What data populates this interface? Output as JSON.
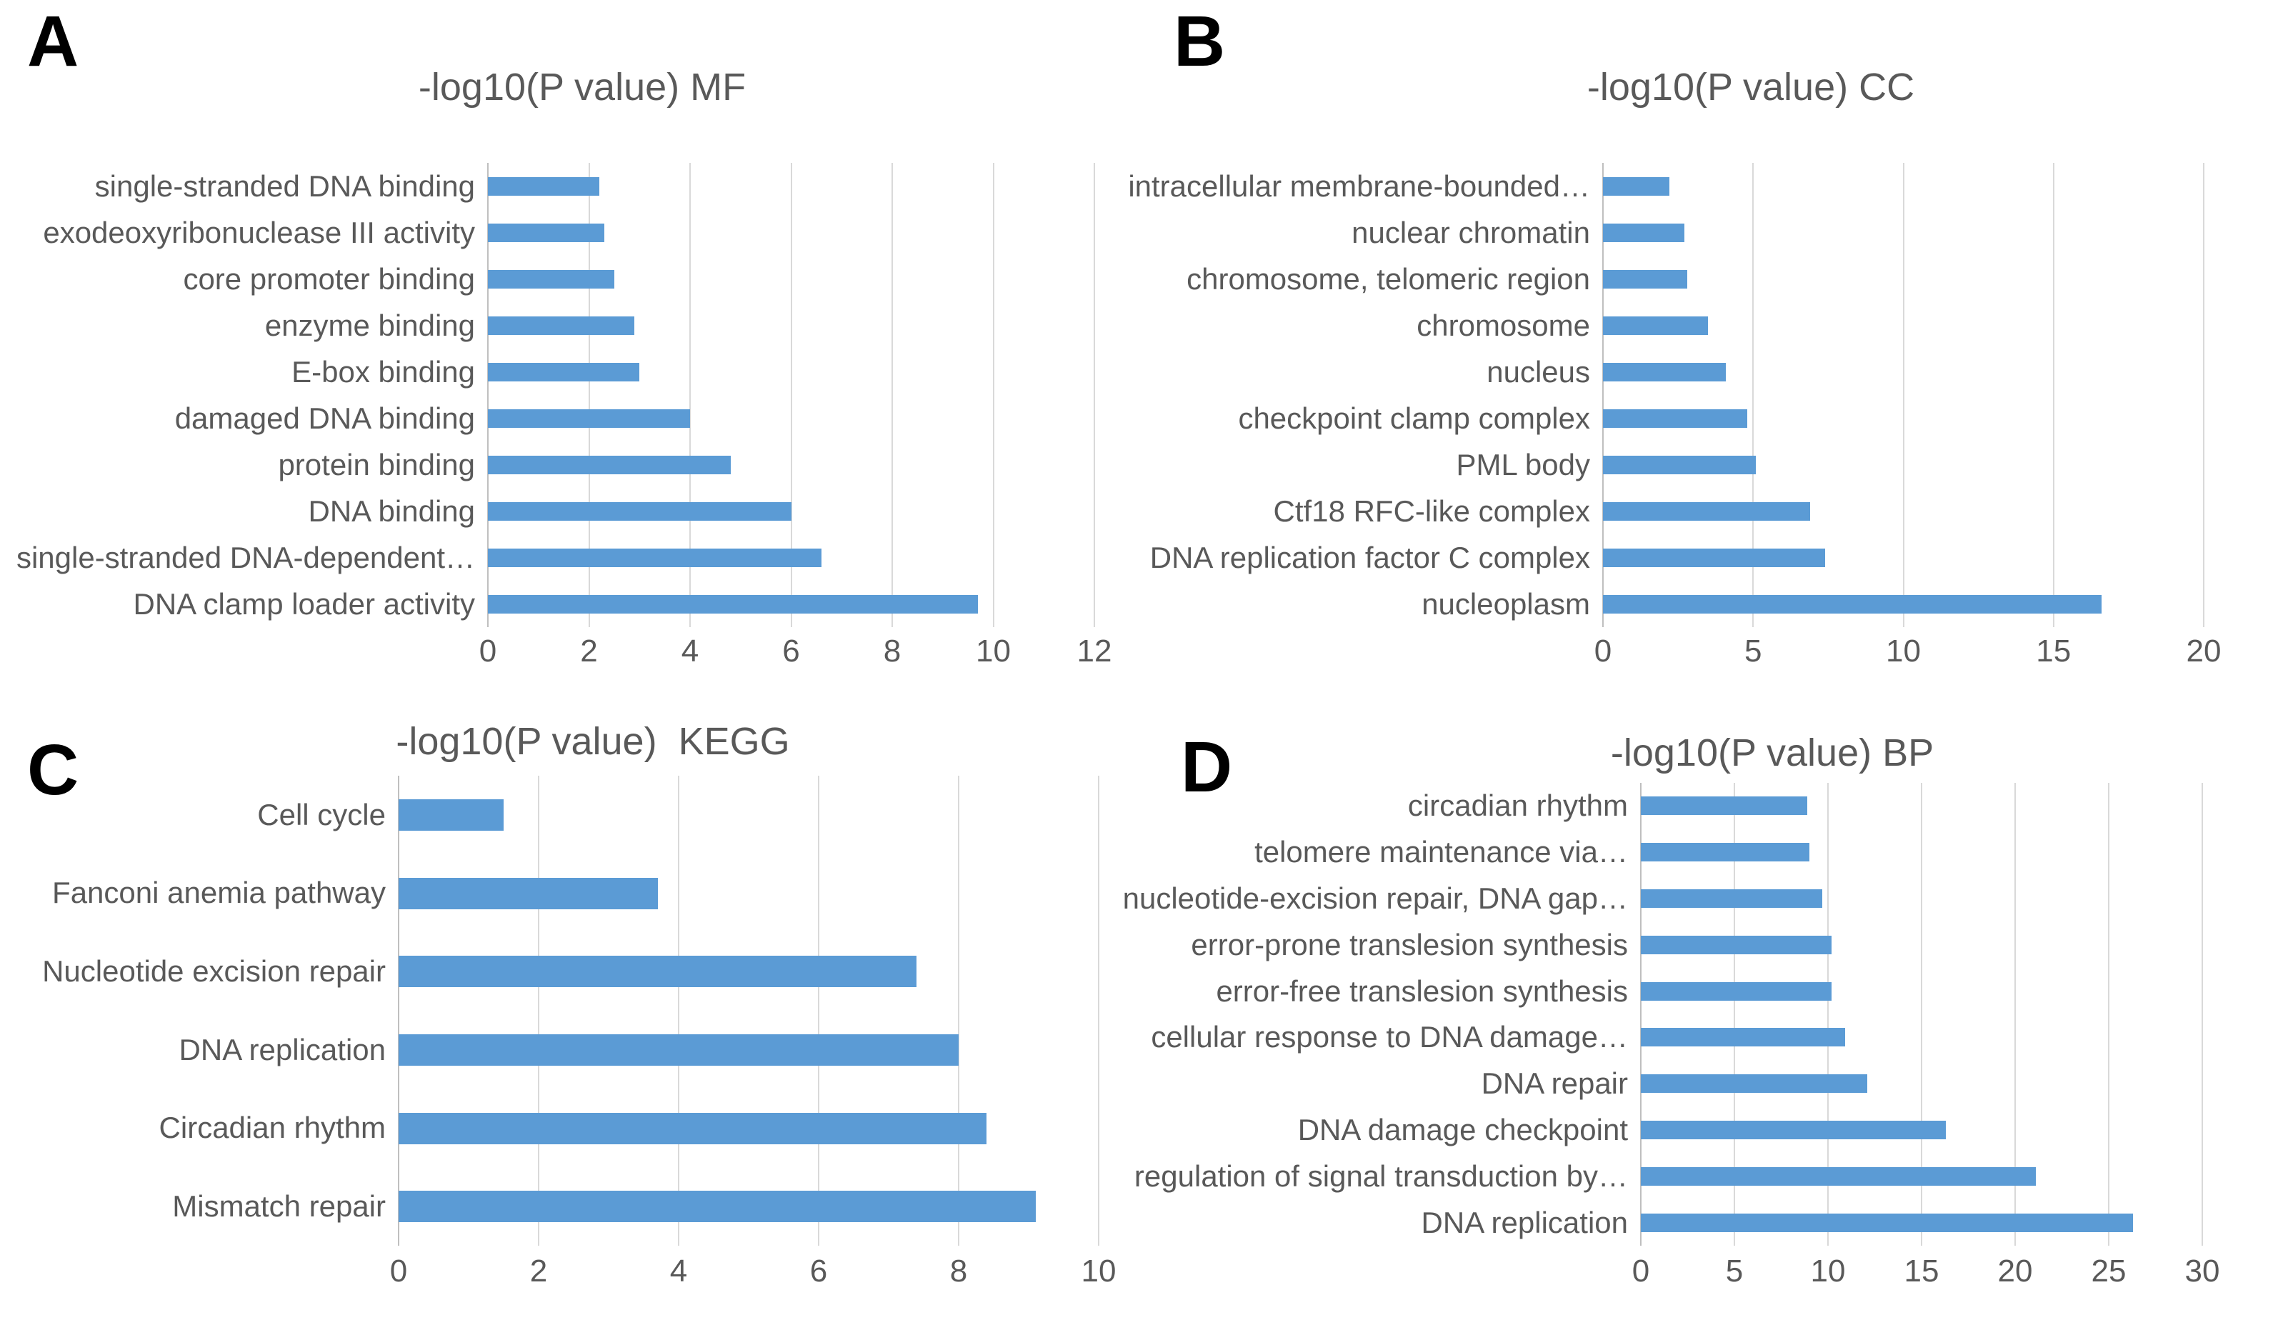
{
  "figure": {
    "background": "#ffffff",
    "bar_color": "#5B9BD5",
    "gridline_color": "#D9D9D9",
    "zero_axis_color": "#BFBFBF",
    "text_color": "#595959",
    "panel_letter_color": "#000000"
  },
  "chart_data": [
    {
      "panel_letter": "A",
      "type": "bar",
      "orientation": "horizontal",
      "title": "-log10(P value) MF",
      "xlabel": "",
      "ylabel": "",
      "grid": true,
      "legend": false,
      "xlim": [
        0,
        12
      ],
      "xticks": [
        0,
        2,
        4,
        6,
        8,
        10,
        12
      ],
      "categories": [
        "single-stranded DNA binding",
        "exodeoxyribonuclease III activity",
        "core promoter binding",
        "enzyme binding",
        "E-box binding",
        "damaged DNA binding",
        "protein binding",
        "DNA binding",
        "single-stranded DNA-dependent…",
        "DNA clamp loader activity"
      ],
      "values": [
        2.2,
        2.3,
        2.5,
        2.9,
        3.0,
        4.0,
        4.8,
        6.0,
        6.6,
        9.7
      ]
    },
    {
      "panel_letter": "B",
      "type": "bar",
      "orientation": "horizontal",
      "title": "-log10(P value) CC",
      "xlabel": "",
      "ylabel": "",
      "grid": true,
      "legend": false,
      "xlim": [
        0,
        20
      ],
      "xticks": [
        0,
        5,
        10,
        15,
        20
      ],
      "categories": [
        "intracellular membrane-bounded…",
        "nuclear chromatin",
        "chromosome, telomeric region",
        "chromosome",
        "nucleus",
        "checkpoint clamp complex",
        "PML body",
        "Ctf18 RFC-like complex",
        "DNA replication factor C complex",
        "nucleoplasm"
      ],
      "values": [
        2.2,
        2.7,
        2.8,
        3.5,
        4.1,
        4.8,
        5.1,
        6.9,
        7.4,
        16.6
      ]
    },
    {
      "panel_letter": "C",
      "type": "bar",
      "orientation": "horizontal",
      "title": "-log10(P value)  KEGG",
      "xlabel": "",
      "ylabel": "",
      "grid": true,
      "legend": false,
      "xlim": [
        0,
        10
      ],
      "xticks": [
        0,
        2,
        4,
        6,
        8,
        10
      ],
      "categories": [
        "Cell cycle",
        "Fanconi anemia pathway",
        "Nucleotide excision repair",
        "DNA replication",
        "Circadian rhythm",
        "Mismatch repair"
      ],
      "values": [
        1.5,
        3.7,
        7.4,
        8.0,
        8.4,
        9.1
      ]
    },
    {
      "panel_letter": "D",
      "type": "bar",
      "orientation": "horizontal",
      "title": "-log10(P value) BP",
      "xlabel": "",
      "ylabel": "",
      "grid": true,
      "legend": false,
      "xlim": [
        0,
        30
      ],
      "xticks": [
        0,
        5,
        10,
        15,
        20,
        25,
        30
      ],
      "categories": [
        "circadian rhythm",
        "telomere maintenance via…",
        "nucleotide-excision repair, DNA gap…",
        "error-prone translesion synthesis",
        "error-free translesion synthesis",
        "cellular response to DNA damage…",
        "DNA repair",
        "DNA damage checkpoint",
        "regulation of signal transduction by…",
        "DNA replication"
      ],
      "values": [
        8.9,
        9.0,
        9.7,
        10.2,
        10.2,
        10.9,
        12.1,
        16.3,
        21.1,
        26.3
      ]
    }
  ]
}
